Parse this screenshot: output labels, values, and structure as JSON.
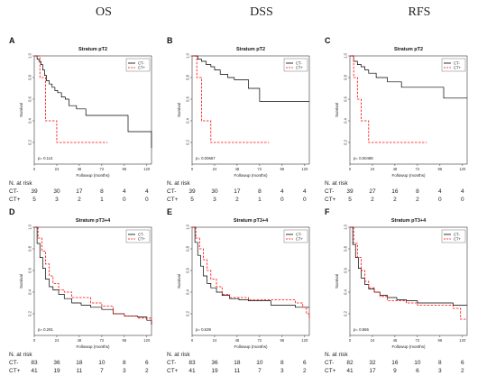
{
  "column_headers": [
    "OS",
    "DSS",
    "RFS"
  ],
  "colors": {
    "ct_minus": "#000000",
    "ct_plus": "#ff0000"
  },
  "risk_heading": "N. at risk",
  "chart_data": [
    {
      "panel": "A",
      "type": "line",
      "title": "Stratum pT2",
      "xlabel": "Followup (months)",
      "ylabel": "Survival",
      "xlim": [
        0,
        125
      ],
      "ylim": [
        0,
        1
      ],
      "xticks": [
        "0",
        "24",
        "48",
        "72",
        "96",
        "120"
      ],
      "yticks": [
        "0.2",
        "0.4",
        "0.6",
        "0.8",
        "1.0"
      ],
      "legend": "top-right",
      "pvalue": "p= 0.114",
      "series": [
        {
          "name": "CT-",
          "style": "solid",
          "x": [
            0,
            3,
            5,
            7,
            9,
            11,
            13,
            16,
            19,
            22,
            25,
            29,
            33,
            37,
            45,
            55,
            70,
            100,
            125
          ],
          "y": [
            1.0,
            0.97,
            0.95,
            0.92,
            0.87,
            0.82,
            0.77,
            0.74,
            0.71,
            0.68,
            0.66,
            0.62,
            0.6,
            0.54,
            0.51,
            0.45,
            0.45,
            0.3,
            0.15
          ]
        },
        {
          "name": "CT+",
          "style": "dashed",
          "x": [
            0,
            6,
            12,
            24,
            78
          ],
          "y": [
            1.0,
            0.8,
            0.4,
            0.2,
            0.2
          ]
        }
      ],
      "risk_table": {
        "times": [
          "0",
          "24",
          "48",
          "72",
          "96",
          "120"
        ],
        "rows": [
          {
            "label": "CT-",
            "values": [
              39,
              30,
              17,
              8,
              4,
              4
            ]
          },
          {
            "label": "CT+",
            "values": [
              5,
              3,
              2,
              1,
              0,
              0
            ]
          }
        ]
      }
    },
    {
      "panel": "B",
      "type": "line",
      "title": "Stratum pT2",
      "xlabel": "Followup (months)",
      "ylabel": "Survival",
      "xlim": [
        0,
        125
      ],
      "ylim": [
        0,
        1
      ],
      "xticks": [
        "0",
        "24",
        "48",
        "72",
        "96",
        "120"
      ],
      "yticks": [
        "0.2",
        "0.4",
        "0.6",
        "0.8",
        "1.0"
      ],
      "legend": "top-right",
      "pvalue": "p= 0.00667",
      "series": [
        {
          "name": "CT-",
          "style": "solid",
          "x": [
            0,
            6,
            10,
            15,
            20,
            24,
            30,
            38,
            45,
            60,
            72,
            125
          ],
          "y": [
            1.0,
            0.97,
            0.95,
            0.92,
            0.9,
            0.87,
            0.83,
            0.8,
            0.78,
            0.7,
            0.58,
            0.58
          ]
        },
        {
          "name": "CT+",
          "style": "dashed",
          "x": [
            0,
            5,
            10,
            20,
            82
          ],
          "y": [
            1.0,
            0.8,
            0.4,
            0.2,
            0.2
          ]
        }
      ],
      "risk_table": {
        "times": [
          "0",
          "24",
          "48",
          "72",
          "96",
          "120"
        ],
        "rows": [
          {
            "label": "CT-",
            "values": [
              39,
              30,
              17,
              8,
              4,
              4
            ]
          },
          {
            "label": "CT+",
            "values": [
              5,
              3,
              2,
              1,
              0,
              0
            ]
          }
        ]
      }
    },
    {
      "panel": "C",
      "type": "line",
      "title": "Stratum pT2",
      "xlabel": "Followup (months)",
      "ylabel": "Survival",
      "xlim": [
        0,
        125
      ],
      "ylim": [
        0,
        1
      ],
      "xticks": [
        "0",
        "24",
        "48",
        "72",
        "96",
        "120"
      ],
      "yticks": [
        "0.2",
        "0.4",
        "0.6",
        "0.8",
        "1.0"
      ],
      "legend": "top-right",
      "pvalue": "p= 0.00498",
      "series": [
        {
          "name": "CT-",
          "style": "solid",
          "x": [
            0,
            4,
            8,
            12,
            16,
            20,
            28,
            40,
            55,
            70,
            100,
            125
          ],
          "y": [
            1.0,
            0.95,
            0.92,
            0.9,
            0.87,
            0.84,
            0.8,
            0.76,
            0.71,
            0.71,
            0.61,
            0.61
          ]
        },
        {
          "name": "CT+",
          "style": "dashed",
          "x": [
            0,
            4,
            8,
            12,
            20,
            82
          ],
          "y": [
            1.0,
            0.8,
            0.6,
            0.4,
            0.2,
            0.2
          ]
        }
      ],
      "risk_table": {
        "times": [
          "0",
          "24",
          "48",
          "72",
          "96",
          "120"
        ],
        "rows": [
          {
            "label": "CT-",
            "values": [
              39,
              27,
              16,
              8,
              4,
              4
            ]
          },
          {
            "label": "CT+",
            "values": [
              5,
              2,
              2,
              2,
              0,
              0
            ]
          }
        ]
      }
    },
    {
      "panel": "D",
      "type": "line",
      "title": "Stratum pT3+4",
      "xlabel": "Followup (months)",
      "ylabel": "Survival",
      "xlim": [
        0,
        125
      ],
      "ylim": [
        0,
        1
      ],
      "xticks": [
        "0",
        "24",
        "48",
        "72",
        "96",
        "120"
      ],
      "yticks": [
        "0.2",
        "0.4",
        "0.6",
        "0.8",
        "1.0"
      ],
      "legend": "top-right",
      "pvalue": "p= 0.291",
      "series": [
        {
          "name": "CT-",
          "style": "solid",
          "x": [
            0,
            3,
            6,
            9,
            12,
            16,
            20,
            26,
            32,
            40,
            50,
            60,
            72,
            84,
            96,
            110,
            120,
            125
          ],
          "y": [
            1.0,
            0.85,
            0.72,
            0.62,
            0.52,
            0.45,
            0.42,
            0.38,
            0.34,
            0.3,
            0.28,
            0.26,
            0.24,
            0.2,
            0.18,
            0.17,
            0.14,
            0.1
          ]
        },
        {
          "name": "CT+",
          "style": "dashed",
          "x": [
            0,
            4,
            8,
            12,
            16,
            20,
            26,
            32,
            40,
            60,
            72,
            84,
            96,
            110,
            125
          ],
          "y": [
            1.0,
            0.9,
            0.78,
            0.66,
            0.55,
            0.48,
            0.42,
            0.4,
            0.35,
            0.3,
            0.27,
            0.2,
            0.18,
            0.16,
            0.12
          ]
        }
      ],
      "risk_table": {
        "times": [
          "0",
          "24",
          "48",
          "72",
          "96",
          "120"
        ],
        "rows": [
          {
            "label": "CT-",
            "values": [
              83,
              36,
              18,
              10,
              8,
              6
            ]
          },
          {
            "label": "CT+",
            "values": [
              41,
              19,
              11,
              7,
              3,
              2
            ]
          }
        ]
      }
    },
    {
      "panel": "E",
      "type": "line",
      "title": "Stratum pT3+4",
      "xlabel": "Followup (months)",
      "ylabel": "Survival",
      "xlim": [
        0,
        125
      ],
      "ylim": [
        0,
        1
      ],
      "xticks": [
        "0",
        "24",
        "48",
        "72",
        "96",
        "120"
      ],
      "yticks": [
        "0.2",
        "0.4",
        "0.6",
        "0.8",
        "1.0"
      ],
      "legend": "top-right",
      "pvalue": "p= 0.639",
      "series": [
        {
          "name": "CT-",
          "style": "solid",
          "x": [
            0,
            3,
            6,
            9,
            12,
            16,
            20,
            26,
            32,
            40,
            50,
            60,
            72,
            84,
            96,
            110,
            125
          ],
          "y": [
            1.0,
            0.86,
            0.74,
            0.64,
            0.55,
            0.48,
            0.44,
            0.4,
            0.37,
            0.34,
            0.33,
            0.32,
            0.32,
            0.28,
            0.28,
            0.26,
            0.26
          ]
        },
        {
          "name": "CT+",
          "style": "dashed",
          "x": [
            0,
            4,
            8,
            12,
            16,
            20,
            26,
            32,
            40,
            60,
            72,
            84,
            110,
            118,
            122,
            125
          ],
          "y": [
            1.0,
            0.9,
            0.8,
            0.7,
            0.6,
            0.52,
            0.45,
            0.38,
            0.35,
            0.33,
            0.33,
            0.33,
            0.3,
            0.26,
            0.2,
            0.15
          ]
        }
      ],
      "risk_table": {
        "times": [
          "0",
          "24",
          "48",
          "72",
          "96",
          "120"
        ],
        "rows": [
          {
            "label": "CT-",
            "values": [
              83,
              36,
              18,
              10,
              8,
              6
            ]
          },
          {
            "label": "CT+",
            "values": [
              41,
              19,
              11,
              7,
              3,
              2
            ]
          }
        ]
      }
    },
    {
      "panel": "F",
      "type": "line",
      "title": "Stratum pT3+4",
      "xlabel": "Followup (months)",
      "ylabel": "Survival",
      "xlim": [
        0,
        125
      ],
      "ylim": [
        0,
        1
      ],
      "xticks": [
        "0",
        "24",
        "48",
        "72",
        "96",
        "120"
      ],
      "yticks": [
        "0.2",
        "0.4",
        "0.6",
        "0.8",
        "1.0"
      ],
      "legend": "top-right",
      "pvalue": "p= 0.866",
      "series": [
        {
          "name": "CT-",
          "style": "solid",
          "x": [
            0,
            3,
            6,
            9,
            12,
            16,
            20,
            26,
            32,
            40,
            50,
            60,
            72,
            96,
            110,
            125
          ],
          "y": [
            1.0,
            0.84,
            0.72,
            0.62,
            0.53,
            0.47,
            0.43,
            0.4,
            0.37,
            0.35,
            0.33,
            0.32,
            0.3,
            0.3,
            0.28,
            0.28
          ]
        },
        {
          "name": "CT+",
          "style": "dashed",
          "x": [
            0,
            4,
            8,
            12,
            16,
            20,
            26,
            32,
            40,
            60,
            72,
            96,
            110,
            118,
            125
          ],
          "y": [
            1.0,
            0.85,
            0.72,
            0.6,
            0.5,
            0.44,
            0.4,
            0.36,
            0.32,
            0.3,
            0.28,
            0.28,
            0.25,
            0.15,
            0.15
          ]
        }
      ],
      "risk_table": {
        "times": [
          "0",
          "24",
          "48",
          "72",
          "96",
          "120"
        ],
        "rows": [
          {
            "label": "CT-",
            "values": [
              82,
              32,
              16,
              10,
              8,
              6
            ]
          },
          {
            "label": "CT+",
            "values": [
              41,
              17,
              9,
              6,
              3,
              2
            ]
          }
        ]
      }
    }
  ]
}
